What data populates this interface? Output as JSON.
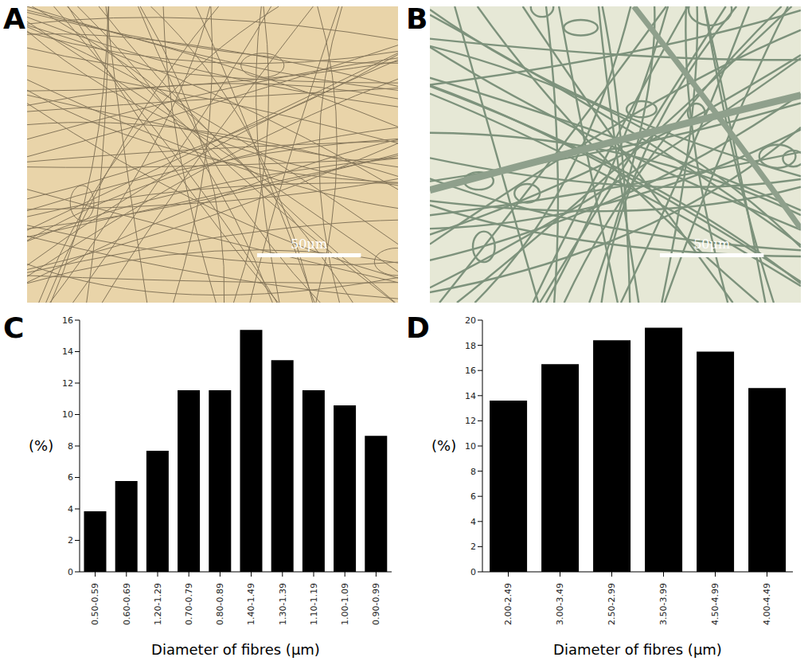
{
  "micrographs": [
    {
      "panel": "A",
      "scale_bar": "50μm"
    },
    {
      "panel": "B",
      "scale_bar": "50μm"
    }
  ],
  "chart_data": [
    {
      "type": "bar",
      "panel": "C",
      "x_label": "Diameter of fibres (μm)",
      "y_label": "(%)",
      "categories": [
        "0.50-0.59",
        "0.60-0.69",
        "1.20-1.29",
        "0.70-0.79",
        "0.80-0.89",
        "1.40-1.49",
        "1.30-1.39",
        "1.10-1.19",
        "1.00-1.09",
        "0.90-0.99"
      ],
      "values": [
        3.85,
        5.77,
        7.69,
        11.54,
        11.54,
        15.38,
        13.46,
        11.54,
        10.58,
        8.65
      ],
      "color": "#000000",
      "ylim": [
        0,
        16
      ],
      "yticks": [
        0,
        2,
        4,
        6,
        8,
        10,
        12,
        14,
        16
      ]
    },
    {
      "type": "bar",
      "panel": "D",
      "x_label": "Diameter of fibres (μm)",
      "y_label": "(%)",
      "categories": [
        "2.00-2.49",
        "3.00-3.49",
        "2.50-2.99",
        "3.50-3.99",
        "4.50-4.99",
        "4.00-4.49"
      ],
      "values": [
        13.6,
        16.5,
        18.4,
        19.4,
        17.5,
        14.6
      ],
      "color": "#000000",
      "ylim": [
        0,
        20
      ],
      "yticks": [
        0,
        2,
        4,
        6,
        8,
        10,
        12,
        14,
        16,
        18,
        20
      ]
    }
  ]
}
